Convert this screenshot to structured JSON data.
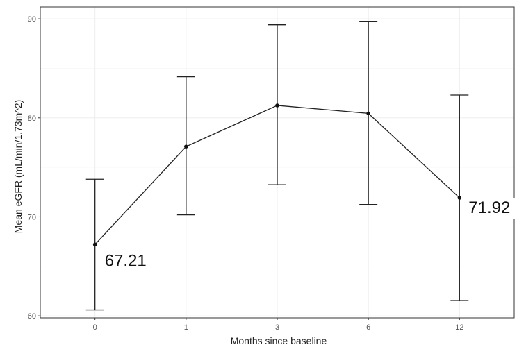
{
  "chart_data": {
    "type": "line",
    "xlabel": "Months since baseline",
    "ylabel": "Mean eGFR (mL/min/1.73m^2)",
    "categories": [
      "0",
      "1",
      "3",
      "6",
      "12"
    ],
    "y_ticks": [
      60,
      70,
      80,
      90
    ],
    "ylim": [
      59.8,
      91.2
    ],
    "grid": true,
    "series": [
      {
        "values": [
          67.21,
          77.1,
          81.25,
          80.45,
          71.92
        ],
        "error_lower": [
          60.6,
          70.2,
          73.25,
          71.25,
          61.55
        ],
        "error_upper": [
          73.8,
          84.15,
          89.4,
          89.75,
          82.3
        ]
      }
    ],
    "annotations": [
      {
        "index": 0,
        "text": "67.21"
      },
      {
        "index": 4,
        "text": "71.92"
      }
    ]
  }
}
